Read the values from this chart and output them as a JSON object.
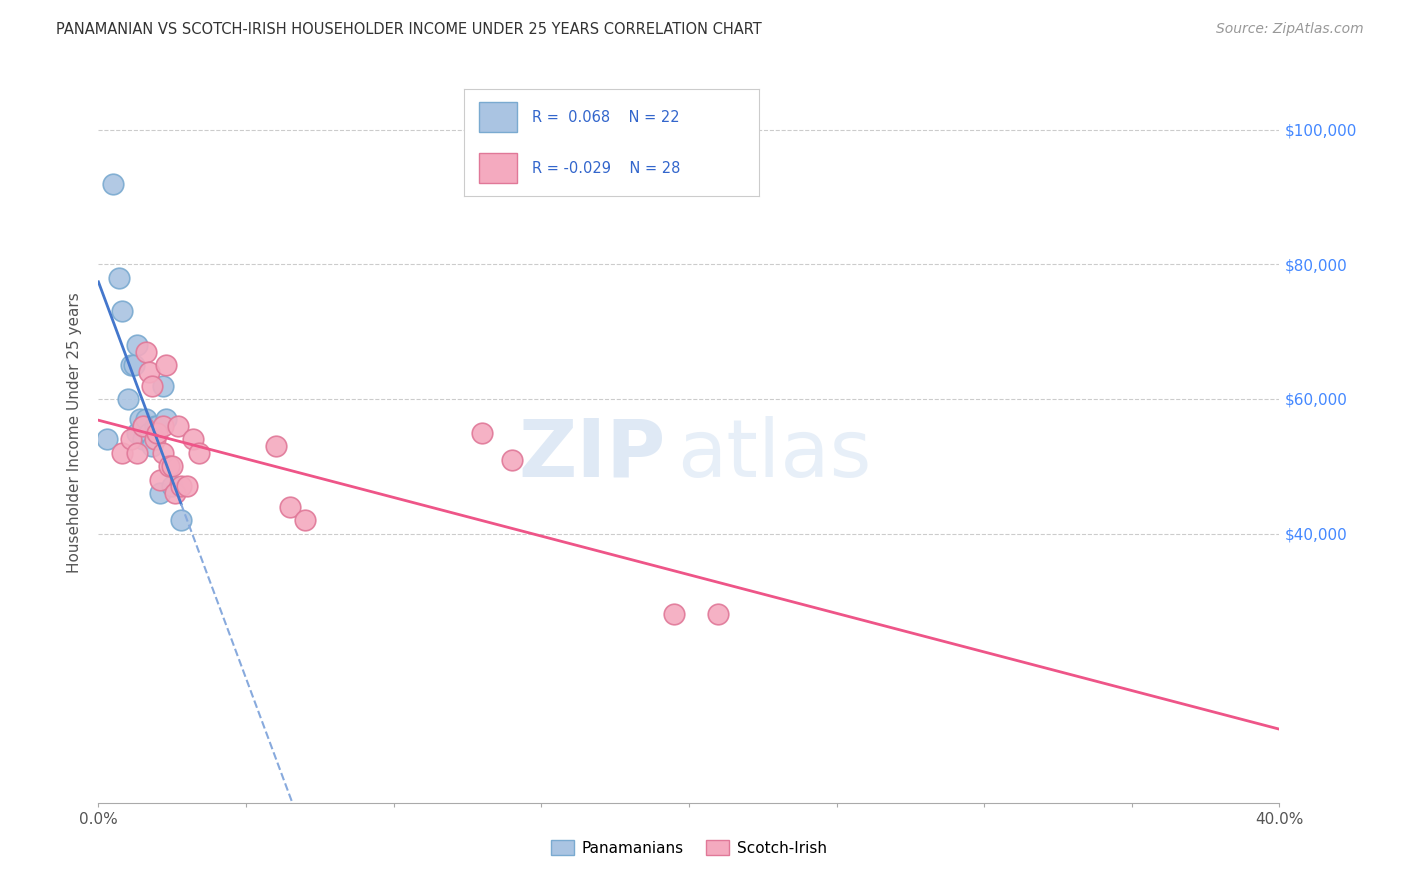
{
  "title": "PANAMANIAN VS SCOTCH-IRISH HOUSEHOLDER INCOME UNDER 25 YEARS CORRELATION CHART",
  "source": "Source: ZipAtlas.com",
  "ylabel": "Householder Income Under 25 years",
  "x_min": 0.0,
  "x_max": 0.4,
  "y_min": 0,
  "y_max": 110000,
  "watermark_zip": "ZIP",
  "watermark_atlas": "atlas",
  "panamanian_color": "#aac4e2",
  "panamanian_edge": "#7aaad0",
  "scotch_irish_color": "#f4aabf",
  "scotch_irish_edge": "#e07898",
  "trend_pan_color": "#4477cc",
  "trend_pan_dash_color": "#88aadd",
  "trend_scotch_color": "#ee5588",
  "grid_color": "#cccccc",
  "background_color": "#ffffff",
  "panamanian_x": [
    0.003,
    0.005,
    0.007,
    0.008,
    0.01,
    0.011,
    0.012,
    0.013,
    0.013,
    0.014,
    0.015,
    0.015,
    0.016,
    0.017,
    0.018,
    0.019,
    0.02,
    0.021,
    0.022,
    0.023,
    0.025,
    0.028
  ],
  "panamanian_y": [
    54000,
    92000,
    78000,
    73000,
    60000,
    65000,
    65000,
    68000,
    55000,
    57000,
    56000,
    54000,
    57000,
    55000,
    53000,
    56000,
    56000,
    46000,
    62000,
    57000,
    47000,
    42000
  ],
  "scotch_x": [
    0.008,
    0.011,
    0.013,
    0.015,
    0.016,
    0.017,
    0.018,
    0.019,
    0.02,
    0.021,
    0.022,
    0.022,
    0.023,
    0.024,
    0.025,
    0.026,
    0.027,
    0.028,
    0.03,
    0.032,
    0.034,
    0.06,
    0.065,
    0.07,
    0.13,
    0.14,
    0.195,
    0.21
  ],
  "scotch_y": [
    52000,
    54000,
    52000,
    56000,
    67000,
    64000,
    62000,
    54000,
    55000,
    48000,
    56000,
    52000,
    65000,
    50000,
    50000,
    46000,
    56000,
    47000,
    47000,
    54000,
    52000,
    53000,
    44000,
    42000,
    55000,
    51000,
    28000,
    28000
  ]
}
